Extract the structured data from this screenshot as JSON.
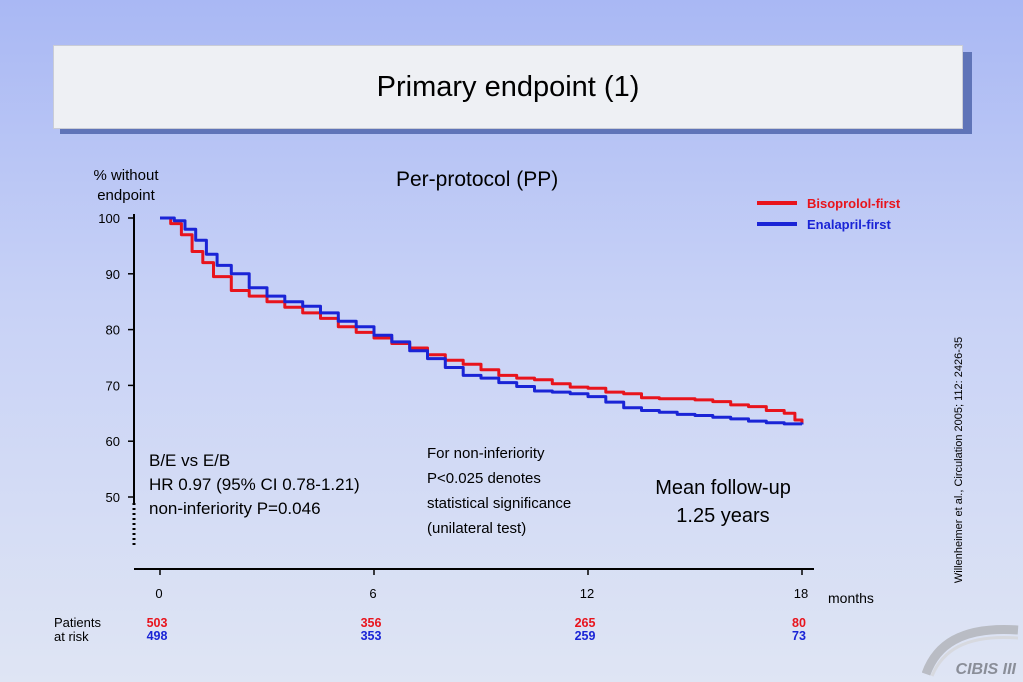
{
  "title": "Primary endpoint (1)",
  "subtitle": "Per-protocol (PP)",
  "citation": "Willenheimer et al., Circulation 2005; 112: 2426-35",
  "stats_text": {
    "line1": "B/E vs E/B",
    "line2": "HR 0.97 (95% CI 0.78-1.21)",
    "line3": "non-inferiority P=0.046"
  },
  "noninferiority_note": {
    "line1": "For non-inferiority",
    "line2": "P<0.025 denotes",
    "line3": "statistical significance",
    "line4": "(unilateral test)"
  },
  "mean_followup": {
    "line1": "Mean follow-up",
    "line2": "1.25 years"
  },
  "patients_at_risk": {
    "label_line1": "Patients",
    "label_line2": "at risk"
  },
  "logo": {
    "text": "CIBIS III"
  },
  "chart_data": {
    "type": "line",
    "ylabel_line1": "% without",
    "ylabel_line2": "endpoint",
    "xlabel": "months",
    "xlim": [
      0,
      18
    ],
    "ylim": [
      50,
      100
    ],
    "x_ticks": [
      0,
      6,
      12,
      18
    ],
    "y_ticks": [
      50,
      60,
      70,
      80,
      90,
      100
    ],
    "colors": {
      "bisoprolol": "#e8141c",
      "enalapril": "#1a24d6"
    },
    "series": [
      {
        "name": "Bisoprolol-first",
        "color": "#e8141c",
        "x": [
          0,
          0.3,
          0.6,
          0.9,
          1.2,
          1.5,
          2.0,
          2.5,
          3.0,
          3.5,
          4.0,
          4.5,
          5.0,
          5.5,
          6.0,
          6.5,
          7.0,
          7.5,
          8.0,
          8.5,
          9.0,
          9.5,
          10.0,
          10.5,
          11.0,
          11.5,
          12.0,
          12.5,
          13.0,
          13.5,
          14.0,
          14.5,
          15.0,
          15.5,
          16.0,
          16.5,
          17.0,
          17.5,
          17.8,
          18.0
        ],
        "y": [
          100,
          99,
          97,
          94,
          92,
          89.5,
          87,
          86,
          85,
          84,
          83,
          82,
          80.5,
          79.5,
          78.5,
          77.5,
          76.7,
          75.5,
          74.5,
          73.8,
          72.8,
          71.8,
          71.3,
          71,
          70.3,
          69.7,
          69.5,
          68.8,
          68.5,
          67.8,
          67.6,
          67.6,
          67.4,
          67.1,
          66.5,
          66.2,
          65.5,
          65,
          63.8,
          63
        ]
      },
      {
        "name": "Enalapril-first",
        "color": "#1a24d6",
        "x": [
          0,
          0.4,
          0.7,
          1.0,
          1.3,
          1.6,
          2.0,
          2.5,
          3.0,
          3.5,
          4.0,
          4.5,
          5.0,
          5.5,
          6.0,
          6.5,
          7.0,
          7.5,
          8.0,
          8.5,
          9.0,
          9.5,
          10.0,
          10.5,
          11.0,
          11.5,
          12.0,
          12.5,
          13.0,
          13.5,
          14.0,
          14.5,
          15.0,
          15.5,
          16.0,
          16.5,
          17.0,
          17.5,
          18.0
        ],
        "y": [
          100,
          99.5,
          98,
          96,
          93.5,
          91.5,
          90,
          87.5,
          86,
          85,
          84.2,
          83,
          81.5,
          80.5,
          79,
          77.8,
          76.2,
          74.8,
          73.2,
          71.8,
          71.3,
          70.5,
          69.8,
          69,
          68.8,
          68.5,
          68,
          67,
          66,
          65.5,
          65.2,
          64.8,
          64.6,
          64.3,
          64,
          63.6,
          63.3,
          63.1,
          63
        ]
      }
    ],
    "at_risk": [
      {
        "month": 0,
        "bisoprolol": 503,
        "enalapril": 498
      },
      {
        "month": 6,
        "bisoprolol": 356,
        "enalapril": 353
      },
      {
        "month": 12,
        "bisoprolol": 265,
        "enalapril": 259
      },
      {
        "month": 18,
        "bisoprolol": 80,
        "enalapril": 73
      }
    ],
    "legend_position": "top-right",
    "grid": false
  }
}
